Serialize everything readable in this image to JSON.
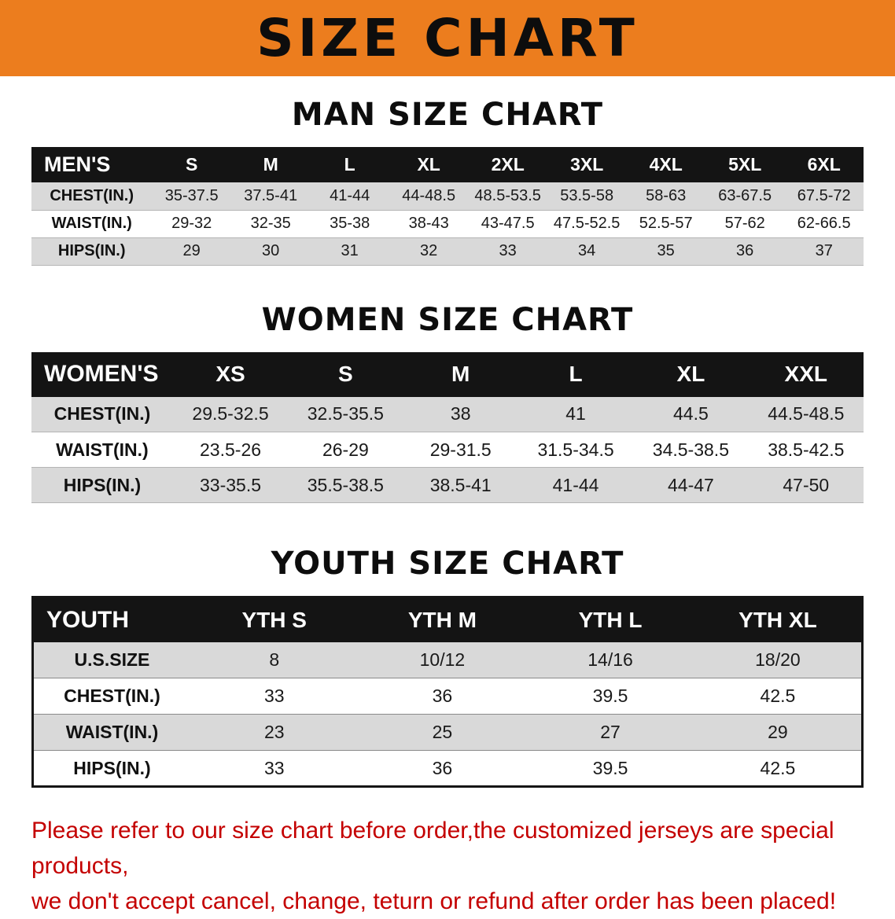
{
  "banner": {
    "title": "SIZE CHART",
    "bg_color": "#EC7D1E"
  },
  "sections": [
    {
      "heading": "MAN SIZE CHART",
      "label": "MEN'S",
      "columns": [
        "S",
        "M",
        "L",
        "XL",
        "2XL",
        "3XL",
        "4XL",
        "5XL",
        "6XL"
      ],
      "rows": [
        {
          "label": "CHEST(IN.)",
          "values": [
            "35-37.5",
            "37.5-41",
            "41-44",
            "44-48.5",
            "48.5-53.5",
            "53.5-58",
            "58-63",
            "63-67.5",
            "67.5-72"
          ]
        },
        {
          "label": "WAIST(IN.)",
          "values": [
            "29-32",
            "32-35",
            "35-38",
            "38-43",
            "43-47.5",
            "47.5-52.5",
            "52.5-57",
            "57-62",
            "62-66.5"
          ]
        },
        {
          "label": "HIPS(IN.)",
          "values": [
            "29",
            "30",
            "31",
            "32",
            "33",
            "34",
            "35",
            "36",
            "37"
          ]
        }
      ]
    },
    {
      "heading": "WOMEN SIZE CHART",
      "label": "WOMEN'S",
      "columns": [
        "XS",
        "S",
        "M",
        "L",
        "XL",
        "XXL"
      ],
      "rows": [
        {
          "label": "CHEST(IN.)",
          "values": [
            "29.5-32.5",
            "32.5-35.5",
            "38",
            "41",
            "44.5",
            "44.5-48.5"
          ]
        },
        {
          "label": "WAIST(IN.)",
          "values": [
            "23.5-26",
            "26-29",
            "29-31.5",
            "31.5-34.5",
            "34.5-38.5",
            "38.5-42.5"
          ]
        },
        {
          "label": "HIPS(IN.)",
          "values": [
            "33-35.5",
            "35.5-38.5",
            "38.5-41",
            "41-44",
            "44-47",
            "47-50"
          ]
        }
      ]
    },
    {
      "heading": "YOUTH SIZE CHART",
      "label": "YOUTH",
      "columns": [
        "YTH S",
        "YTH M",
        "YTH L",
        "YTH XL"
      ],
      "rows": [
        {
          "label": "U.S.SIZE",
          "values": [
            "8",
            "10/12",
            "14/16",
            "18/20"
          ]
        },
        {
          "label": "CHEST(IN.)",
          "values": [
            "33",
            "36",
            "39.5",
            "42.5"
          ]
        },
        {
          "label": "WAIST(IN.)",
          "values": [
            "23",
            "25",
            "27",
            "29"
          ]
        },
        {
          "label": "HIPS(IN.)",
          "values": [
            "33",
            "36",
            "39.5",
            "42.5"
          ]
        }
      ]
    }
  ],
  "disclaimer": {
    "line1": "Please refer to our size chart before order,the customized jerseys are special products,",
    "line2": "we don't accept cancel, change, teturn or refund after order has been placed!",
    "color": "#C40000"
  }
}
